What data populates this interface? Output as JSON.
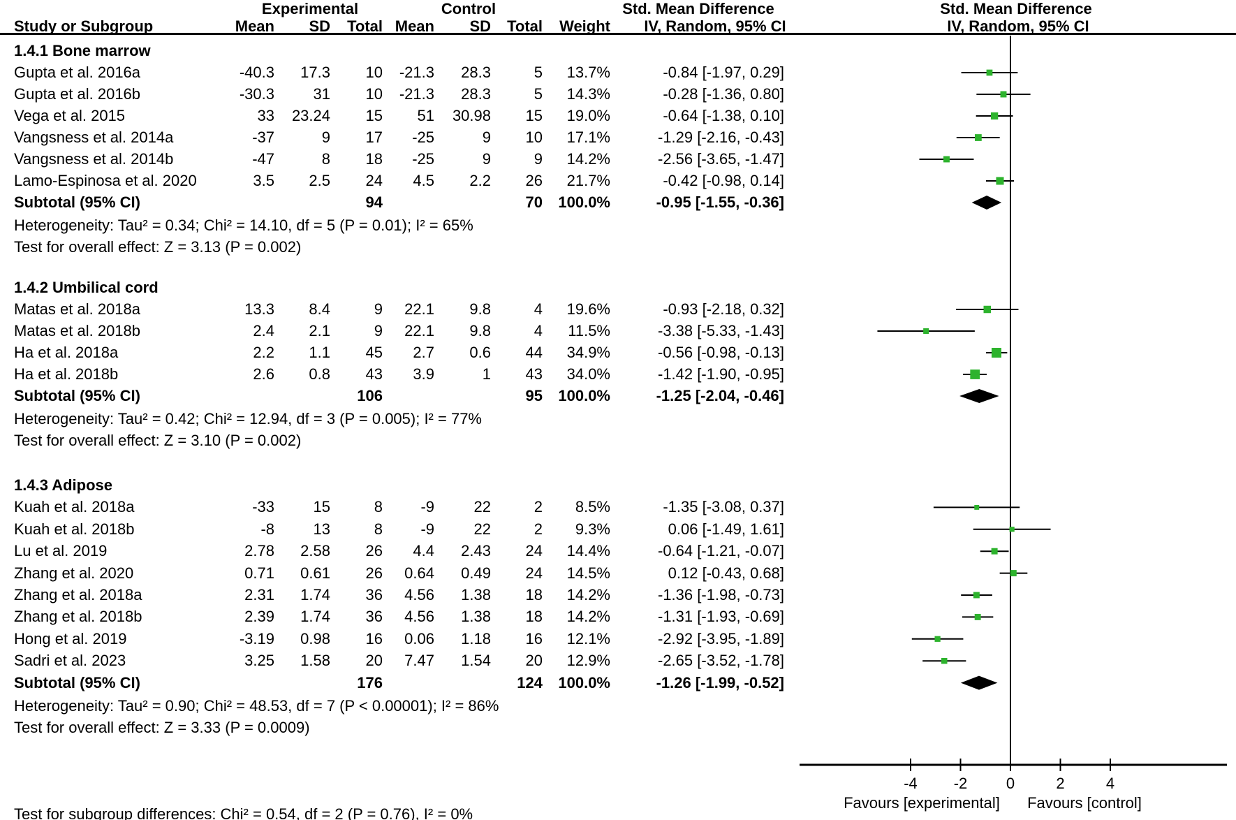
{
  "header": {
    "col_group_experimental": "Experimental",
    "col_group_control": "Control",
    "smd_col_title": "Std. Mean Difference",
    "plot_col_title": "Std. Mean Difference",
    "study_col": "Study or Subgroup",
    "mean_exp": "Mean",
    "sd_exp": "SD",
    "total_exp": "Total",
    "mean_ctl": "Mean",
    "sd_ctl": "SD",
    "total_ctl": "Total",
    "weight": "Weight",
    "method_label": "IV, Random, 95% CI",
    "plot_method_label": "IV, Random, 95% CI"
  },
  "chart_data": {
    "type": "forest",
    "effect_measure": "Std. Mean Difference",
    "model": "IV, Random, 95% CI",
    "axis": {
      "ticks": [
        -4,
        -2,
        0,
        2,
        4
      ],
      "xlim": [
        -8.5,
        8.6
      ],
      "zero_line": 0
    },
    "favours_left": "Favours [experimental]",
    "favours_right": "Favours [control]",
    "footer": "Test for subgroup differences: Chi² = 0.54, df = 2 (P = 0.76), I² = 0%",
    "colors": {
      "marker": "#2db32d",
      "line": "#000000",
      "diamond": "#000000"
    },
    "subgroups": [
      {
        "label": "1.4.1 Bone marrow",
        "studies": [
          {
            "name": "Gupta et al. 2016a",
            "exp_mean": "-40.3",
            "exp_sd": "17.3",
            "exp_total": "10",
            "ctl_mean": "-21.3",
            "ctl_sd": "28.3",
            "ctl_total": "5",
            "weight": "13.7%",
            "weight_val": 13.7,
            "ci_text": "-0.84 [-1.97, 0.29]",
            "smd": -0.84,
            "lo": -1.97,
            "hi": 0.29
          },
          {
            "name": "Gupta et al. 2016b",
            "exp_mean": "-30.3",
            "exp_sd": "31",
            "exp_total": "10",
            "ctl_mean": "-21.3",
            "ctl_sd": "28.3",
            "ctl_total": "5",
            "weight": "14.3%",
            "weight_val": 14.3,
            "ci_text": "-0.28 [-1.36, 0.80]",
            "smd": -0.28,
            "lo": -1.36,
            "hi": 0.8
          },
          {
            "name": "Vega et al. 2015",
            "exp_mean": "33",
            "exp_sd": "23.24",
            "exp_total": "15",
            "ctl_mean": "51",
            "ctl_sd": "30.98",
            "ctl_total": "15",
            "weight": "19.0%",
            "weight_val": 19.0,
            "ci_text": "-0.64 [-1.38, 0.10]",
            "smd": -0.64,
            "lo": -1.38,
            "hi": 0.1
          },
          {
            "name": "Vangsness et al. 2014a",
            "exp_mean": "-37",
            "exp_sd": "9",
            "exp_total": "17",
            "ctl_mean": "-25",
            "ctl_sd": "9",
            "ctl_total": "10",
            "weight": "17.1%",
            "weight_val": 17.1,
            "ci_text": "-1.29 [-2.16, -0.43]",
            "smd": -1.29,
            "lo": -2.16,
            "hi": -0.43
          },
          {
            "name": "Vangsness et al. 2014b",
            "exp_mean": "-47",
            "exp_sd": "8",
            "exp_total": "18",
            "ctl_mean": "-25",
            "ctl_sd": "9",
            "ctl_total": "9",
            "weight": "14.2%",
            "weight_val": 14.2,
            "ci_text": "-2.56 [-3.65, -1.47]",
            "smd": -2.56,
            "lo": -3.65,
            "hi": -1.47
          },
          {
            "name": "Lamo-Espinosa et al. 2020",
            "exp_mean": "3.5",
            "exp_sd": "2.5",
            "exp_total": "24",
            "ctl_mean": "4.5",
            "ctl_sd": "2.2",
            "ctl_total": "26",
            "weight": "21.7%",
            "weight_val": 21.7,
            "ci_text": "-0.42 [-0.98, 0.14]",
            "smd": -0.42,
            "lo": -0.98,
            "hi": 0.14
          }
        ],
        "subtotal": {
          "label": "Subtotal (95% CI)",
          "exp_total": "94",
          "ctl_total": "70",
          "weight": "100.0%",
          "ci_text": "-0.95 [-1.55, -0.36]",
          "smd": -0.95,
          "lo": -1.55,
          "hi": -0.36
        },
        "heterogeneity": "Heterogeneity: Tau² = 0.34; Chi² = 14.10, df = 5 (P = 0.01); I² = 65%",
        "overall_effect": "Test for overall effect: Z = 3.13 (P = 0.002)"
      },
      {
        "label": "1.4.2 Umbilical cord",
        "studies": [
          {
            "name": "Matas et al. 2018a",
            "exp_mean": "13.3",
            "exp_sd": "8.4",
            "exp_total": "9",
            "ctl_mean": "22.1",
            "ctl_sd": "9.8",
            "ctl_total": "4",
            "weight": "19.6%",
            "weight_val": 19.6,
            "ci_text": "-0.93 [-2.18, 0.32]",
            "smd": -0.93,
            "lo": -2.18,
            "hi": 0.32
          },
          {
            "name": "Matas et al. 2018b",
            "exp_mean": "2.4",
            "exp_sd": "2.1",
            "exp_total": "9",
            "ctl_mean": "22.1",
            "ctl_sd": "9.8",
            "ctl_total": "4",
            "weight": "11.5%",
            "weight_val": 11.5,
            "ci_text": "-3.38 [-5.33, -1.43]",
            "smd": -3.38,
            "lo": -5.33,
            "hi": -1.43
          },
          {
            "name": "Ha et al. 2018a",
            "exp_mean": "2.2",
            "exp_sd": "1.1",
            "exp_total": "45",
            "ctl_mean": "2.7",
            "ctl_sd": "0.6",
            "ctl_total": "44",
            "weight": "34.9%",
            "weight_val": 34.9,
            "ci_text": "-0.56 [-0.98, -0.13]",
            "smd": -0.56,
            "lo": -0.98,
            "hi": -0.13
          },
          {
            "name": "Ha et al. 2018b",
            "exp_mean": "2.6",
            "exp_sd": "0.8",
            "exp_total": "43",
            "ctl_mean": "3.9",
            "ctl_sd": "1",
            "ctl_total": "43",
            "weight": "34.0%",
            "weight_val": 34.0,
            "ci_text": "-1.42 [-1.90, -0.95]",
            "smd": -1.42,
            "lo": -1.9,
            "hi": -0.95
          }
        ],
        "subtotal": {
          "label": "Subtotal (95% CI)",
          "exp_total": "106",
          "ctl_total": "95",
          "weight": "100.0%",
          "ci_text": "-1.25 [-2.04, -0.46]",
          "smd": -1.25,
          "lo": -2.04,
          "hi": -0.46
        },
        "heterogeneity": "Heterogeneity: Tau² = 0.42; Chi² = 12.94, df = 3 (P = 0.005); I² = 77%",
        "overall_effect": "Test for overall effect: Z = 3.10 (P = 0.002)"
      },
      {
        "label": "1.4.3 Adipose",
        "studies": [
          {
            "name": "Kuah et al. 2018a",
            "exp_mean": "-33",
            "exp_sd": "15",
            "exp_total": "8",
            "ctl_mean": "-9",
            "ctl_sd": "22",
            "ctl_total": "2",
            "weight": "8.5%",
            "weight_val": 8.5,
            "ci_text": "-1.35 [-3.08, 0.37]",
            "smd": -1.35,
            "lo": -3.08,
            "hi": 0.37
          },
          {
            "name": "Kuah et al. 2018b",
            "exp_mean": "-8",
            "exp_sd": "13",
            "exp_total": "8",
            "ctl_mean": "-9",
            "ctl_sd": "22",
            "ctl_total": "2",
            "weight": "9.3%",
            "weight_val": 9.3,
            "ci_text": "0.06 [-1.49, 1.61]",
            "smd": 0.06,
            "lo": -1.49,
            "hi": 1.61
          },
          {
            "name": "Lu et al. 2019",
            "exp_mean": "2.78",
            "exp_sd": "2.58",
            "exp_total": "26",
            "ctl_mean": "4.4",
            "ctl_sd": "2.43",
            "ctl_total": "24",
            "weight": "14.4%",
            "weight_val": 14.4,
            "ci_text": "-0.64 [-1.21, -0.07]",
            "smd": -0.64,
            "lo": -1.21,
            "hi": -0.07
          },
          {
            "name": "Zhang et al. 2020",
            "exp_mean": "0.71",
            "exp_sd": "0.61",
            "exp_total": "26",
            "ctl_mean": "0.64",
            "ctl_sd": "0.49",
            "ctl_total": "24",
            "weight": "14.5%",
            "weight_val": 14.5,
            "ci_text": "0.12 [-0.43, 0.68]",
            "smd": 0.12,
            "lo": -0.43,
            "hi": 0.68
          },
          {
            "name": "Zhang et al. 2018a",
            "exp_mean": "2.31",
            "exp_sd": "1.74",
            "exp_total": "36",
            "ctl_mean": "4.56",
            "ctl_sd": "1.38",
            "ctl_total": "18",
            "weight": "14.2%",
            "weight_val": 14.2,
            "ci_text": "-1.36 [-1.98, -0.73]",
            "smd": -1.36,
            "lo": -1.98,
            "hi": -0.73
          },
          {
            "name": "Zhang et al. 2018b",
            "exp_mean": "2.39",
            "exp_sd": "1.74",
            "exp_total": "36",
            "ctl_mean": "4.56",
            "ctl_sd": "1.38",
            "ctl_total": "18",
            "weight": "14.2%",
            "weight_val": 14.2,
            "ci_text": "-1.31 [-1.93, -0.69]",
            "smd": -1.31,
            "lo": -1.93,
            "hi": -0.69
          },
          {
            "name": "Hong et al. 2019",
            "exp_mean": "-3.19",
            "exp_sd": "0.98",
            "exp_total": "16",
            "ctl_mean": "0.06",
            "ctl_sd": "1.18",
            "ctl_total": "16",
            "weight": "12.1%",
            "weight_val": 12.1,
            "ci_text": "-2.92 [-3.95, -1.89]",
            "smd": -2.92,
            "lo": -3.95,
            "hi": -1.89
          },
          {
            "name": "Sadri et al. 2023",
            "exp_mean": "3.25",
            "exp_sd": "1.58",
            "exp_total": "20",
            "ctl_mean": "7.47",
            "ctl_sd": "1.54",
            "ctl_total": "20",
            "weight": "12.9%",
            "weight_val": 12.9,
            "ci_text": "-2.65 [-3.52, -1.78]",
            "smd": -2.65,
            "lo": -3.52,
            "hi": -1.78
          }
        ],
        "subtotal": {
          "label": "Subtotal (95% CI)",
          "exp_total": "176",
          "ctl_total": "124",
          "weight": "100.0%",
          "ci_text": "-1.26 [-1.99, -0.52]",
          "smd": -1.26,
          "lo": -1.99,
          "hi": -0.52
        },
        "heterogeneity": "Heterogeneity: Tau² = 0.90; Chi² = 48.53, df = 7 (P < 0.00001); I² = 86%",
        "overall_effect": "Test for overall effect: Z = 3.33 (P = 0.0009)"
      }
    ]
  }
}
